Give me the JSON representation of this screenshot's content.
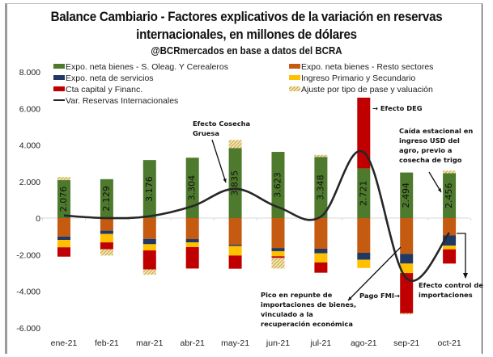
{
  "chart_data": {
    "type": "bar",
    "stacked": true,
    "title": "Balance Cambiario - Factores explicativos de la variación en reservas internacionales, en millones de dólares",
    "subtitle": "@BCRmercados en base a datos del BCRA",
    "xlabel": "",
    "ylabel": "",
    "ylim": [
      -6000,
      8000
    ],
    "yticks": [
      8000,
      6000,
      4000,
      2000,
      0,
      -2000,
      -4000,
      -6000
    ],
    "ytick_labels": [
      "8.000",
      "6.000",
      "4.000",
      "2.000",
      "0",
      "-2.000",
      "-4.000",
      "-6.000"
    ],
    "grid": false,
    "legend_position": "top",
    "categories": [
      "ene-21",
      "feb-21",
      "mar-21",
      "abr-21",
      "may-21",
      "jun-21",
      "jul-21",
      "ago-21",
      "sep-21",
      "oct-21"
    ],
    "series": [
      {
        "name": "Expo. neta bienes - S. Oleag. Y Cerealeros",
        "color": "#4e7a2e",
        "pattern": "solid",
        "values": [
          2076,
          2129,
          3176,
          3304,
          3835,
          3623,
          3348,
          2721,
          2494,
          2456
        ],
        "labels": [
          "2.076",
          "2.129",
          "3.176",
          "3.304",
          "3.835",
          "3.623",
          "3.348",
          "2.721",
          "2.494",
          "2.456"
        ]
      },
      {
        "name": "Expo. neta bienes - Resto sectores",
        "color": "#c55a11",
        "pattern": "solid",
        "values": [
          -1010,
          -690,
          -1140,
          -1150,
          -1460,
          -1640,
          -1680,
          -1900,
          -1960,
          -950
        ]
      },
      {
        "name": "Expo. neta de servicios",
        "color": "#203864",
        "pattern": "solid",
        "values": [
          -190,
          -180,
          -290,
          -180,
          -70,
          -170,
          -250,
          -380,
          -530,
          -560
        ]
      },
      {
        "name": "Ingreso Primario y Secundario",
        "color": "#ffc000",
        "pattern": "solid",
        "values": [
          -400,
          -460,
          -340,
          -260,
          -520,
          -280,
          -500,
          -450,
          -520,
          -200
        ]
      },
      {
        "name": "Cta capital y Financ.",
        "color": "#c00000",
        "pattern": "solid",
        "values": [
          -510,
          -380,
          -1040,
          -1170,
          -720,
          -90,
          -560,
          3870,
          -2200,
          -780
        ]
      },
      {
        "name": "Ajuste por tipo de pase y valuación",
        "color": "#d4b44a",
        "pattern": "hatched",
        "values": [
          170,
          -340,
          -290,
          0,
          440,
          -580,
          110,
          0,
          -60,
          140
        ]
      }
    ],
    "line": {
      "name": "Var. Reservas Internacionales",
      "color": "#262626",
      "values": [
        140,
        0,
        100,
        650,
        1600,
        600,
        80,
        3600,
        -3300,
        -800
      ]
    },
    "annotations": [
      {
        "id": "deg",
        "text": [
          "→ Efecto DEG"
        ]
      },
      {
        "id": "cosecha",
        "text": [
          "Efecto Cosecha",
          "Gruesa"
        ]
      },
      {
        "id": "caida",
        "text": [
          "Caída estacional en",
          "ingreso USD del",
          "agro, previo a",
          "cosecha de trigo"
        ]
      },
      {
        "id": "pico",
        "text": [
          "Pico en repunte de",
          "importaciones de bienes,",
          "vinculado a la",
          "recuperación económica"
        ]
      },
      {
        "id": "fmi",
        "text": [
          "Pago FMI→"
        ]
      },
      {
        "id": "control",
        "text": [
          "Efecto control de",
          "importaciones"
        ]
      }
    ]
  }
}
